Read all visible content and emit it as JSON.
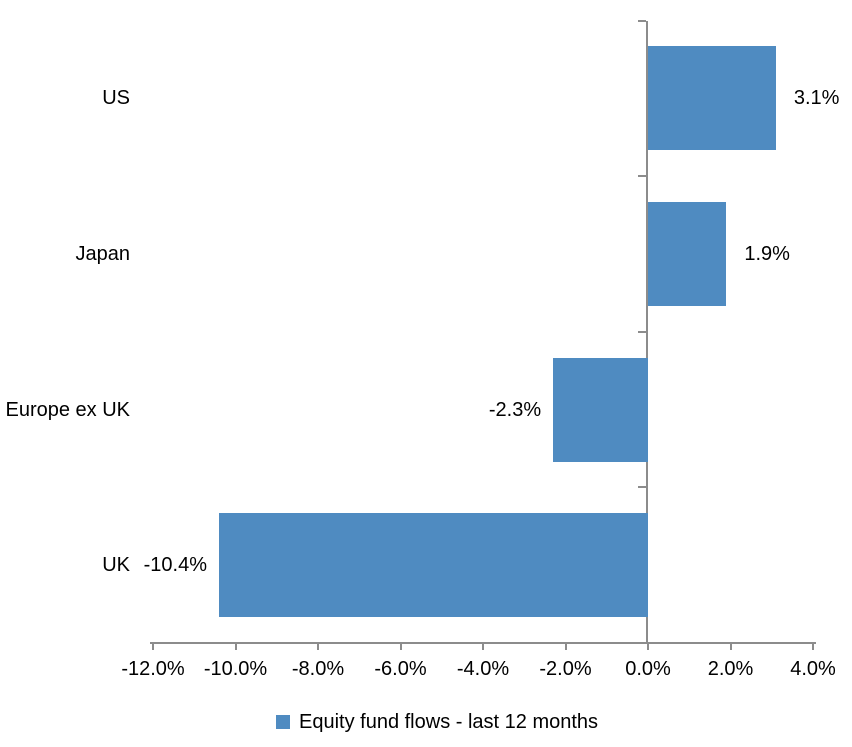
{
  "chart_data": {
    "type": "bar",
    "orientation": "horizontal",
    "title": "",
    "xlabel": "",
    "ylabel": "",
    "categories": [
      "US",
      "Japan",
      "Europe ex UK",
      "UK"
    ],
    "series": [
      {
        "name": "Equity fund flows - last 12 months",
        "values": [
          3.1,
          1.9,
          -2.3,
          -10.4
        ],
        "data_labels": [
          "3.1%",
          "1.9%",
          "-2.3%",
          "-10.4%"
        ],
        "color": "#4f8bc1"
      }
    ],
    "xlim": [
      -12,
      4
    ],
    "x_ticks": [
      -12,
      -10,
      -8,
      -6,
      -4,
      -2,
      0,
      2,
      4
    ],
    "x_tick_labels": [
      "-12.0%",
      "-10.0%",
      "-8.0%",
      "-6.0%",
      "-4.0%",
      "-2.0%",
      "0.0%",
      "2.0%",
      "4.0%"
    ],
    "grid": false,
    "legend_position": "bottom",
    "data_label_position": "outside-end",
    "colors": {
      "bar": "#4f8bc1",
      "axis": "#8c8c8c",
      "text": "#000000",
      "background": "#ffffff"
    }
  }
}
